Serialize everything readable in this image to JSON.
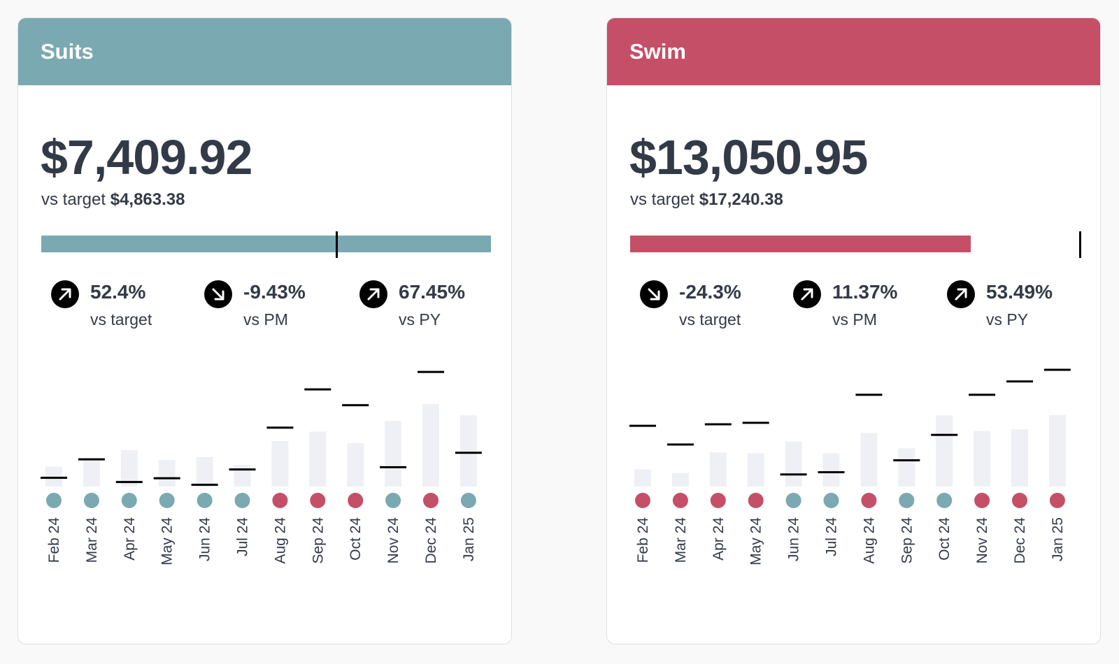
{
  "colors": {
    "teal": "#7aa9b1",
    "red": "#c54f67",
    "bar": "#eff0f5",
    "marker": "#000000"
  },
  "cards": [
    {
      "title": "Suits",
      "header_color": "#7aa9b1",
      "value": "$7,409.92",
      "target_label": "vs target",
      "target_value": "$4,863.38",
      "progress": {
        "actual": 7409.92,
        "target": 4863.38,
        "color": "#7aa9b1"
      },
      "metrics": [
        {
          "value": "52.4%",
          "label": "vs target",
          "direction": "up",
          "icon": "arrow-up-right-icon"
        },
        {
          "value": "-9.43%",
          "label": "vs PM",
          "direction": "down",
          "icon": "arrow-down-right-icon"
        },
        {
          "value": "67.45%",
          "label": "vs PY",
          "direction": "up",
          "icon": "arrow-up-right-icon"
        }
      ],
      "chart_data": {
        "type": "bar",
        "title": "",
        "xlabel": "",
        "ylabel": "",
        "categories": [
          "Feb 24",
          "Mar 24",
          "Apr 24",
          "May 24",
          "Jun 24",
          "Jul 24",
          "Aug 24",
          "Sep 24",
          "Oct 24",
          "Nov 24",
          "Dec 24",
          "Jan 25"
        ],
        "series": [
          {
            "name": "actual",
            "values": [
              1780,
              2530,
              3270,
              2390,
              2650,
              1940,
              4090,
              4930,
              3910,
              5900,
              7410,
              6390
            ]
          },
          {
            "name": "target",
            "values": [
              780,
              2440,
              400,
              740,
              150,
              1530,
              5290,
              8730,
              7310,
              1730,
              10300,
              3030
            ]
          }
        ],
        "status": [
          "above",
          "above",
          "above",
          "above",
          "above",
          "above",
          "below",
          "below",
          "below",
          "above",
          "below",
          "above"
        ],
        "ylim": [
          0,
          11000
        ]
      }
    },
    {
      "title": "Swim",
      "header_color": "#c54f67",
      "value": "$13,050.95",
      "target_label": "vs target",
      "target_value": "$17,240.38",
      "progress": {
        "actual": 13050.95,
        "target": 17240.38,
        "color": "#c54f67"
      },
      "metrics": [
        {
          "value": "-24.3%",
          "label": "vs target",
          "direction": "down",
          "icon": "arrow-down-right-icon"
        },
        {
          "value": "11.37%",
          "label": "vs PM",
          "direction": "up",
          "icon": "arrow-up-right-icon"
        },
        {
          "value": "53.49%",
          "label": "vs PY",
          "direction": "up",
          "icon": "arrow-up-right-icon"
        }
      ],
      "chart_data": {
        "type": "bar",
        "title": "",
        "xlabel": "",
        "ylabel": "",
        "categories": [
          "Feb 24",
          "Mar 24",
          "Apr 24",
          "May 24",
          "Jun 24",
          "Jul 24",
          "Aug 24",
          "Sep 24",
          "Oct 24",
          "Nov 24",
          "Dec 24",
          "Jan 25"
        ],
        "series": [
          {
            "name": "actual",
            "values": [
              3220,
              2540,
              6400,
              6260,
              8420,
              6260,
              10050,
              7180,
              13350,
              10440,
              10720,
              13450
            ]
          },
          {
            "name": "target",
            "values": [
              11410,
              7890,
              11690,
              11970,
              2260,
              2680,
              17240,
              4920,
              9700,
              17240,
              19750,
              21940
            ]
          }
        ],
        "status": [
          "below",
          "below",
          "below",
          "below",
          "above",
          "above",
          "below",
          "above",
          "above",
          "below",
          "below",
          "below"
        ],
        "ylim": [
          0,
          23000
        ]
      }
    }
  ]
}
